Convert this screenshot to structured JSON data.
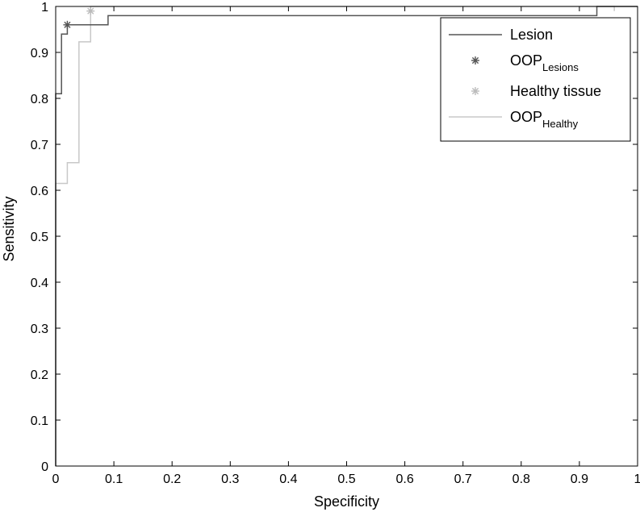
{
  "chart_data": {
    "type": "line",
    "title": "",
    "xlabel": "Specificity",
    "ylabel": "Sensitivity",
    "xlim": [
      0,
      1
    ],
    "ylim": [
      0,
      1
    ],
    "xticks": [
      "0",
      "0.1",
      "0.2",
      "0.3",
      "0.4",
      "0.5",
      "0.6",
      "0.7",
      "0.8",
      "0.9",
      "1"
    ],
    "yticks": [
      "0",
      "0.1",
      "0.2",
      "0.3",
      "0.4",
      "0.5",
      "0.6",
      "0.7",
      "0.8",
      "0.9",
      "1"
    ],
    "grid": false,
    "legend_position": "top-right",
    "series": [
      {
        "name": "Lesion",
        "kind": "line",
        "color": "#555555",
        "x": [
          0,
          0,
          0.01,
          0.01,
          0.02,
          0.02,
          0.09,
          0.09,
          0.93,
          0.93,
          1
        ],
        "y": [
          0,
          0.81,
          0.81,
          0.94,
          0.94,
          0.96,
          0.96,
          0.98,
          0.98,
          1,
          1
        ]
      },
      {
        "name": "OOP",
        "name_sub": "Lesions",
        "kind": "marker",
        "marker": "asterisk",
        "color": "#555555",
        "x": [
          0.02
        ],
        "y": [
          0.96
        ]
      },
      {
        "name": "Healthy tissue",
        "kind": "marker",
        "marker": "asterisk",
        "color": "#bbbbbb",
        "x": [
          0.06
        ],
        "y": [
          0.99
        ]
      },
      {
        "name": "OOP",
        "name_sub": "Healthy",
        "kind": "line",
        "color": "#c8c8c8",
        "x": [
          0,
          0,
          0.02,
          0.02,
          0.04,
          0.04,
          0.06,
          0.06,
          0.96,
          0.96
        ],
        "y": [
          0,
          0.615,
          0.615,
          0.66,
          0.66,
          0.923,
          0.923,
          1,
          1,
          0.99
        ]
      }
    ]
  }
}
